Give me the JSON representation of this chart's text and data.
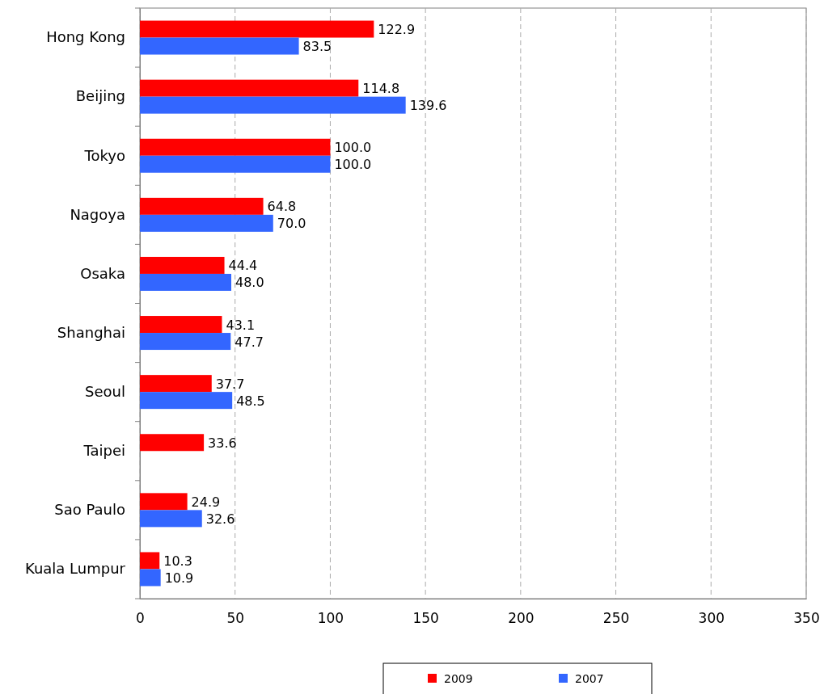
{
  "chart_data": {
    "type": "bar",
    "orientation": "horizontal",
    "categories": [
      "Hong Kong",
      "Beijing",
      "Tokyo",
      "Nagoya",
      "Osaka",
      "Shanghai",
      "Seoul",
      "Taipei",
      "Sao Paulo",
      "Kuala Lumpur"
    ],
    "series": [
      {
        "name": "2009",
        "color": "#ff0000",
        "values": [
          122.9,
          114.8,
          100.0,
          64.8,
          44.4,
          43.1,
          37.7,
          33.6,
          24.9,
          10.3
        ],
        "value_labels": [
          "122.9",
          "114.8",
          "100.0",
          "64.8",
          "44.4",
          "43.1",
          "37.7",
          "33.6",
          "24.9",
          "10.3"
        ]
      },
      {
        "name": "2007",
        "color": "#3366ff",
        "values": [
          83.5,
          139.6,
          100.0,
          70.0,
          48.0,
          47.7,
          48.5,
          null,
          32.6,
          10.9
        ],
        "value_labels": [
          "83.5",
          "139.6",
          "100.0",
          "70.0",
          "48.0",
          "47.7",
          "48.5",
          null,
          "32.6",
          "10.9"
        ]
      }
    ],
    "xlim": [
      0,
      350
    ],
    "xticks": [
      0,
      50,
      100,
      150,
      200,
      250,
      300,
      350
    ],
    "grid": "x",
    "legend": "bottom"
  }
}
